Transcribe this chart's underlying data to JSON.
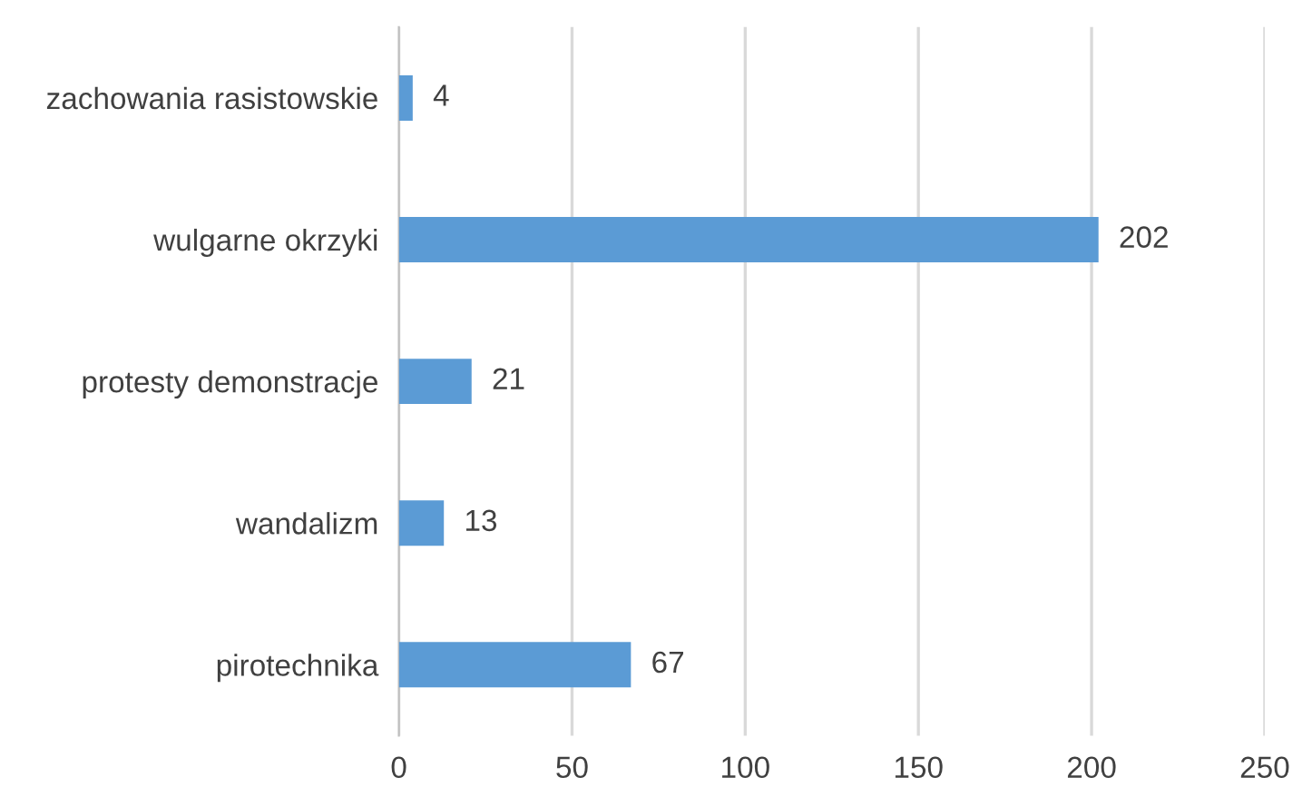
{
  "chart_data": {
    "type": "bar",
    "orientation": "horizontal",
    "categories": [
      "zachowania rasistowskie",
      "wulgarne okrzyki",
      "protesty demonstracje",
      "wandalizm",
      "pirotechnika"
    ],
    "values": [
      4,
      202,
      21,
      13,
      67
    ],
    "color": "#5b9bd5",
    "xlim": [
      0,
      250
    ],
    "xticks": [
      0,
      50,
      100,
      150,
      200,
      250
    ],
    "grid": "x",
    "data_labels": true
  }
}
